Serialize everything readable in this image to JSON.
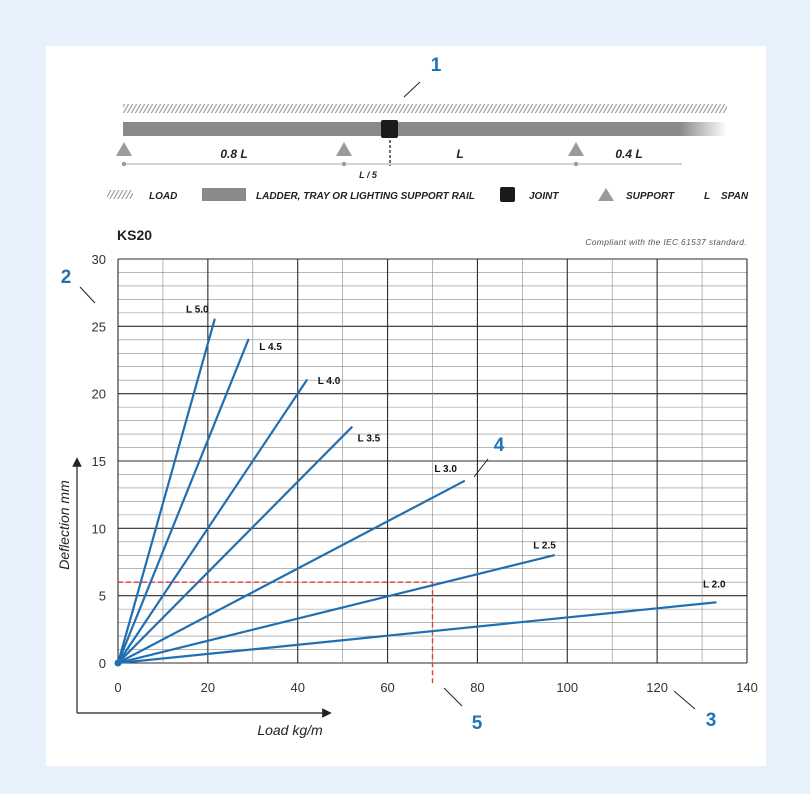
{
  "diagram": {
    "span_left": "0.8 L",
    "span_mid": "L",
    "span_right": "0.4 L",
    "joint_label": "L / 5",
    "callouts": [
      "1",
      "2",
      "3",
      "4",
      "5"
    ]
  },
  "legend": {
    "load": "LOAD",
    "rail": "LADDER, TRAY OR LIGHTING SUPPORT RAIL",
    "joint": "JOINT",
    "support": "SUPPORT",
    "span_symbol": "L",
    "span": "SPAN"
  },
  "colors": {
    "series": "#1f6fb2",
    "callout": "#1f73b7",
    "guide": "#e53935",
    "rail": "#8a8a8a",
    "background": "#e6f1fb"
  },
  "chart_data": {
    "type": "line",
    "title": "KS20",
    "subtitle": "Compliant with the IEC 61537 standard.",
    "xlabel": "Load kg/m",
    "ylabel": "Deflection mm",
    "xlim": [
      0,
      140
    ],
    "ylim": [
      0,
      30
    ],
    "xticks": [
      0,
      20,
      40,
      60,
      80,
      100,
      120,
      140
    ],
    "yticks": [
      0,
      5,
      10,
      15,
      20,
      25,
      30
    ],
    "grid": true,
    "series": [
      {
        "name": "L 5.0",
        "x": [
          0,
          21.5
        ],
        "y": [
          0,
          25.5
        ]
      },
      {
        "name": "L 4.5",
        "x": [
          0,
          29
        ],
        "y": [
          0,
          24
        ]
      },
      {
        "name": "L 4.0",
        "x": [
          0,
          42
        ],
        "y": [
          0,
          21
        ]
      },
      {
        "name": "L 3.5",
        "x": [
          0,
          52
        ],
        "y": [
          0,
          17.5
        ]
      },
      {
        "name": "L 3.0",
        "x": [
          0,
          77
        ],
        "y": [
          0,
          13.5
        ]
      },
      {
        "name": "L 2.5",
        "x": [
          0,
          97
        ],
        "y": [
          0,
          8
        ]
      },
      {
        "name": "L 2.0",
        "x": [
          0,
          133
        ],
        "y": [
          0,
          4.5
        ]
      }
    ],
    "guide": {
      "x": 70,
      "y": 6
    }
  }
}
